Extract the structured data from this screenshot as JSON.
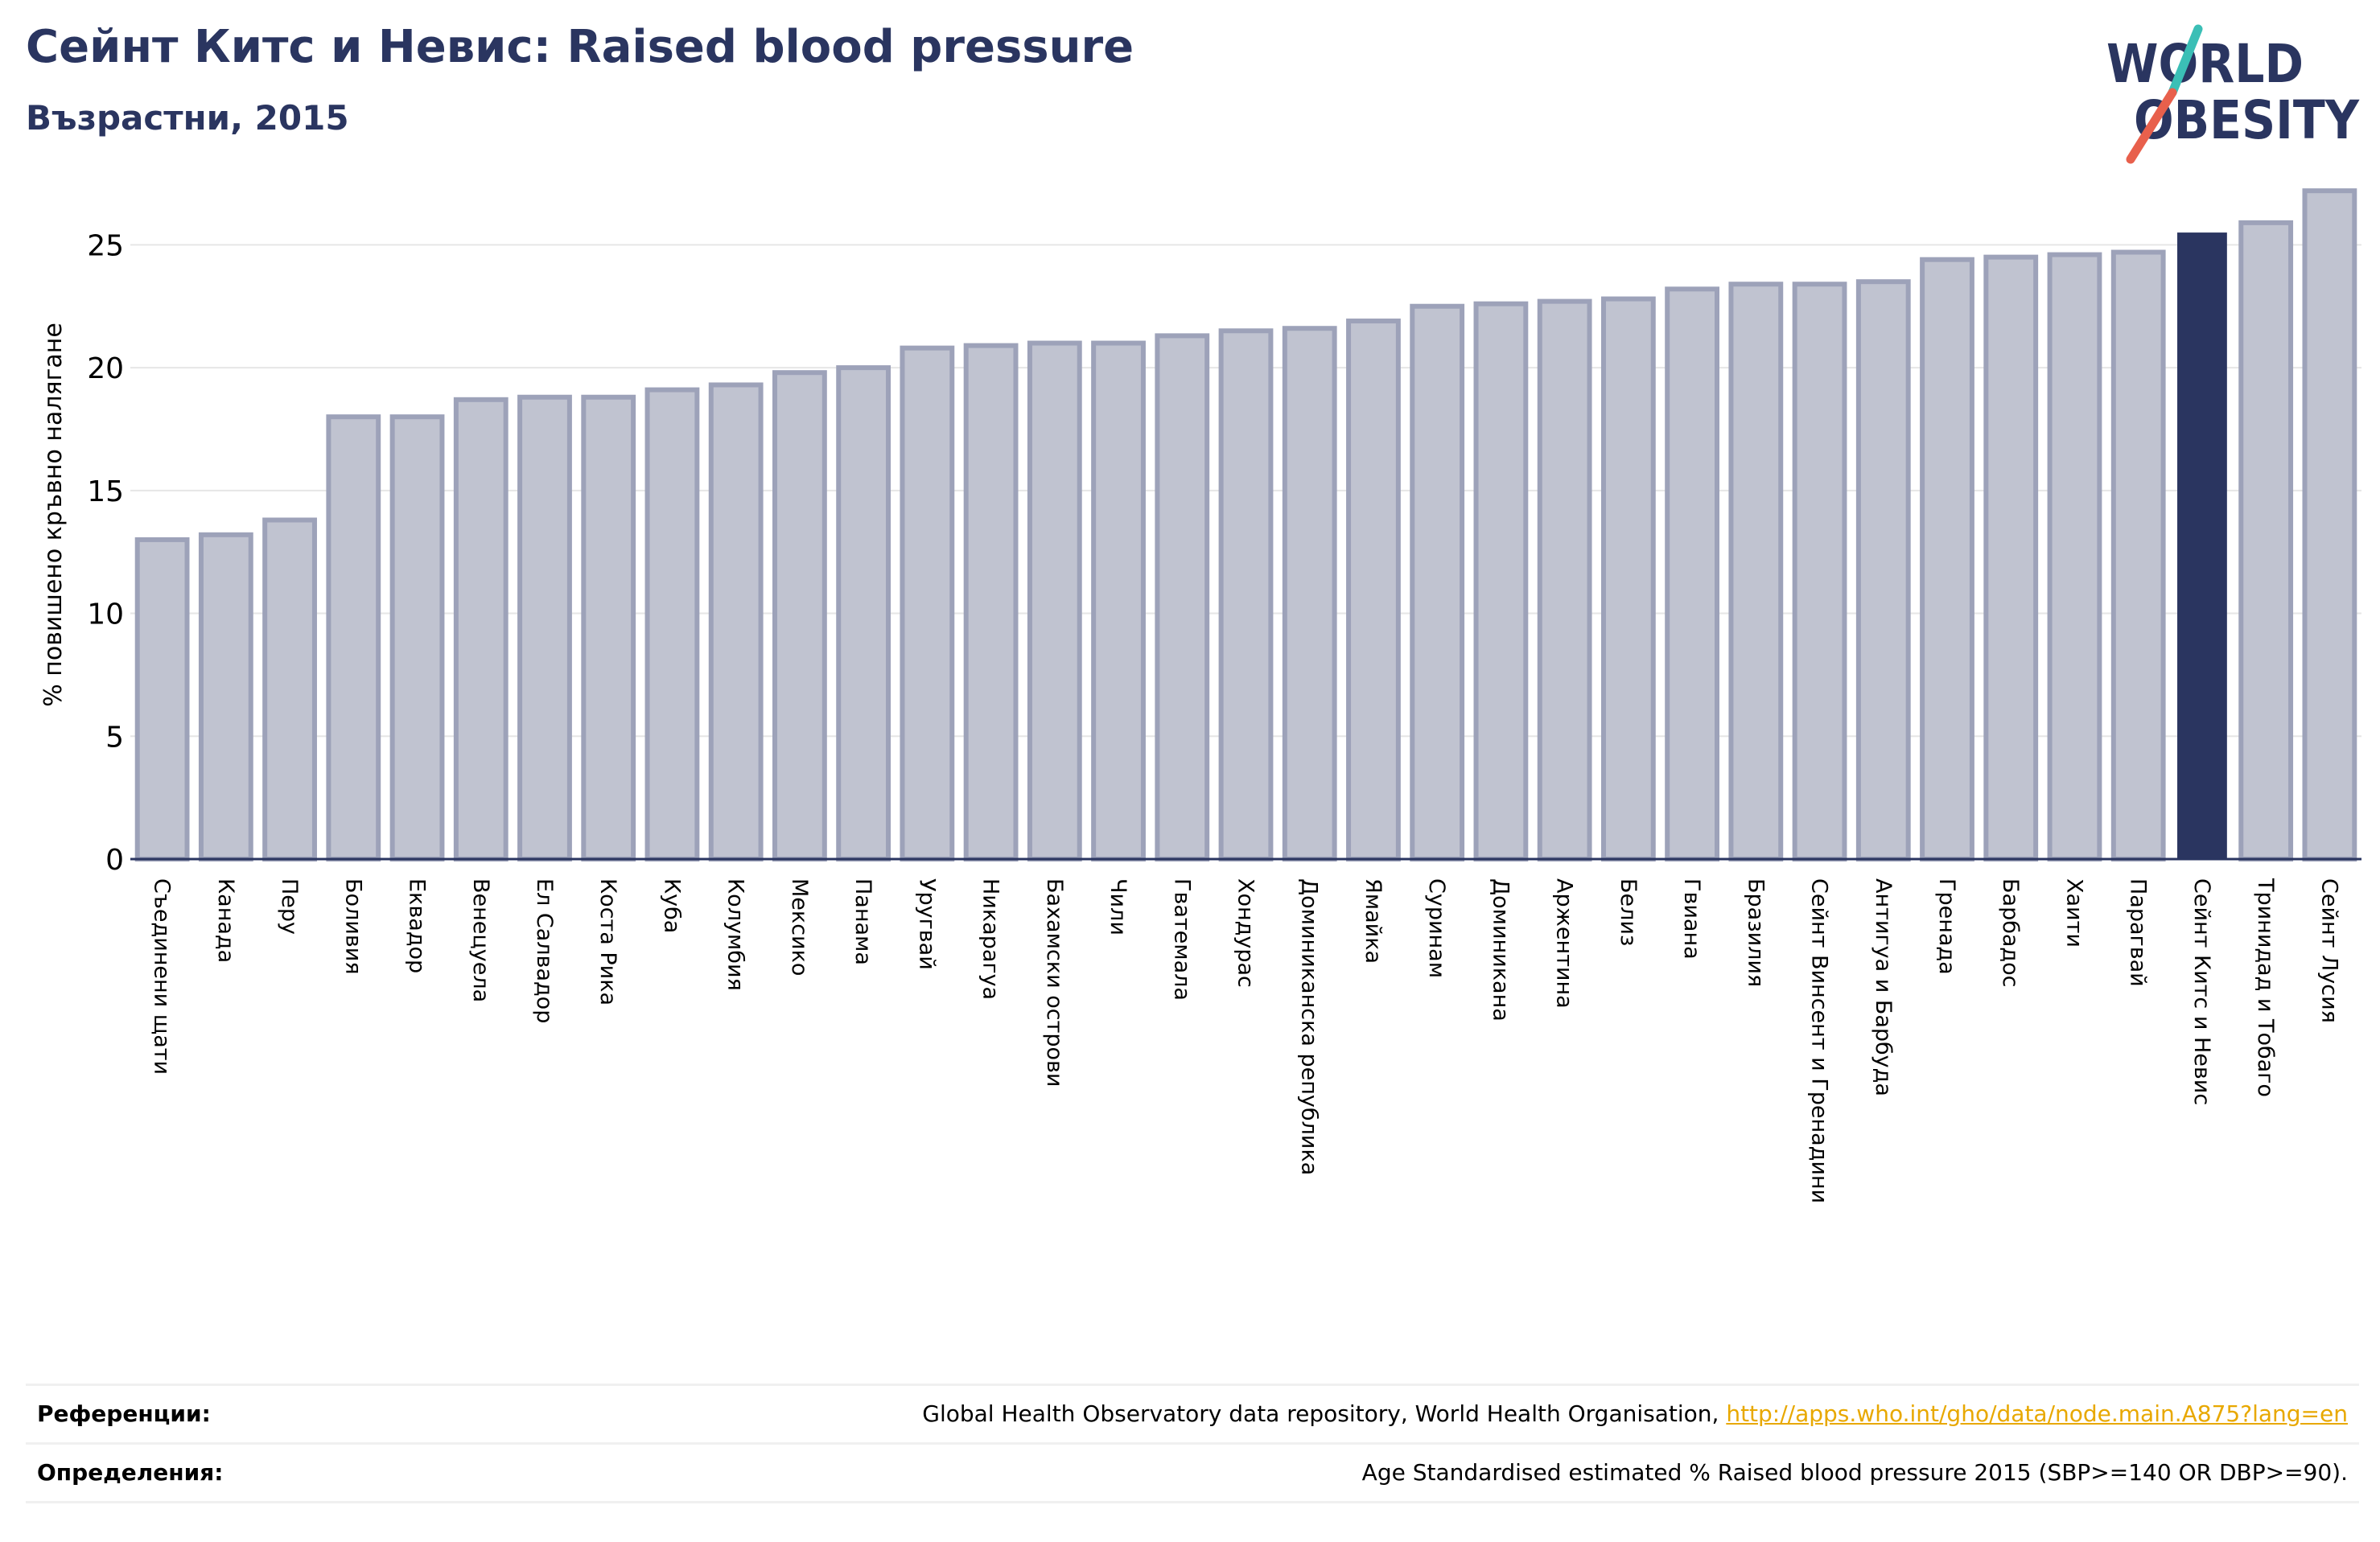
{
  "header": {
    "title": "Сейнт Китс и Невис: Raised blood pressure",
    "subtitle": "Възрастни, 2015"
  },
  "logo": {
    "line1": "WORLD",
    "line2": "OBESITY",
    "name": "world-obesity-logo"
  },
  "colors": {
    "bar_fill": "#c0c3d0",
    "bar_stroke": "#9da2b9",
    "highlight": "#2a3560",
    "axis": "#2a3560",
    "grid": "#e6e6e6",
    "logo_teal": "#3bbfb6",
    "logo_red": "#e8604c",
    "link": "#e8a800"
  },
  "chart_data": {
    "type": "bar",
    "ylabel": "% повишено кръвно налягане",
    "ylim": [
      0,
      27.5
    ],
    "yticks": [
      0,
      5,
      10,
      15,
      20,
      25
    ],
    "grid": true,
    "highlight": "Сейнт Китс и Невис",
    "categories": [
      "Съединени щати",
      "Канада",
      "Перу",
      "Боливия",
      "Еквадор",
      "Венецуела",
      "Ел Салвадор",
      "Коста Рика",
      "Куба",
      "Колумбия",
      "Мексико",
      "Панама",
      "Уругвай",
      "Никарагуа",
      "Бахамски острови",
      "Чили",
      "Гватемала",
      "Хондурас",
      "Доминиканска република",
      "Ямайка",
      "Суринам",
      "Доминикана",
      "Аржентина",
      "Белиз",
      "Гвиана",
      "Бразилия",
      "Сейнт Винсент и Гренадини",
      "Антигуа и Барбуда",
      "Гренада",
      "Барбадос",
      "Хаити",
      "Парагвай",
      "Сейнт Китс и Невис",
      "Тринидад и Тобаго",
      "Сейнт Лусия"
    ],
    "values": [
      13.0,
      13.2,
      13.8,
      18.0,
      18.0,
      18.7,
      18.8,
      18.8,
      19.1,
      19.3,
      19.8,
      20.0,
      20.8,
      20.9,
      21.0,
      21.0,
      21.3,
      21.5,
      21.6,
      21.9,
      22.5,
      22.6,
      22.7,
      22.8,
      23.2,
      23.4,
      23.4,
      23.5,
      24.4,
      24.5,
      24.6,
      24.7,
      25.5,
      25.9,
      27.2
    ]
  },
  "footer": {
    "references_label": "Референции:",
    "references_text": "Global Health Observatory data repository, World Health Organisation,",
    "references_link": "http://apps.who.int/gho/data/node.main.A875?lang=en",
    "definitions_label": "Определения:",
    "definitions_text": "Age Standardised estimated % Raised blood pressure 2015 (SBP>=140 OR DBP>=90)."
  }
}
